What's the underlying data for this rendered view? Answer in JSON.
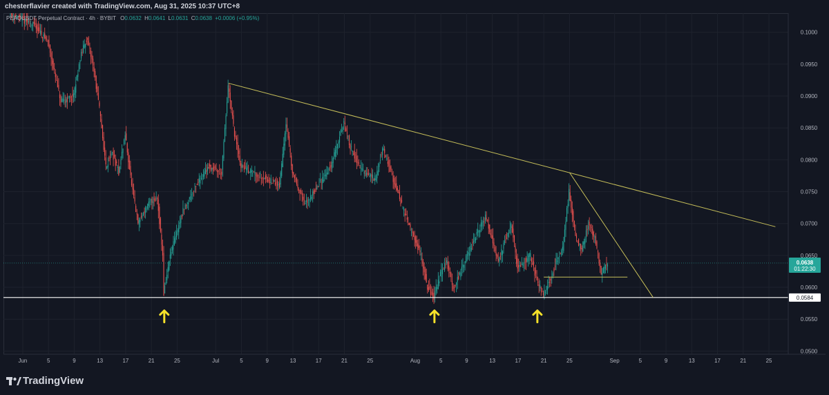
{
  "header": {
    "creator_text": "chesterflavier created with TradingView.com, Aug 31, 2025 10:37 UTC+8"
  },
  "legend": {
    "symbol": "PEAQUSDT Perpetual Contract · 4h · BYBIT",
    "open_label": "O",
    "open_value": "0.0632",
    "high_label": "H",
    "high_value": "0.0641",
    "low_label": "L",
    "low_value": "0.0631",
    "close_label": "C",
    "close_value": "0.0638",
    "change": "+0.0006 (+0.95%)"
  },
  "price_badge": {
    "price": "0.0638",
    "countdown": "01:22:30"
  },
  "support_badge": "0.0584",
  "footer": {
    "brand": "TradingView"
  },
  "colors": {
    "background": "#131722",
    "up": "#26a69a",
    "down": "#ef5350",
    "trendline": "#c8c05a",
    "support": "#ffffff",
    "arrow": "#f5e12a"
  },
  "chart_data": {
    "type": "candlestick",
    "symbol": "PEAQUSDT",
    "interval": "4h",
    "x_range": [
      "2025-05-29",
      "2025-09-28"
    ],
    "ylim": [
      0.0495,
      0.103
    ],
    "y_ticks": [
      "0.1000",
      "0.0950",
      "0.0900",
      "0.0850",
      "0.0800",
      "0.0750",
      "0.0700",
      "0.0650",
      "0.0600",
      "0.0550",
      "0.0500"
    ],
    "x_ticks": [
      {
        "date": "2025-06-01",
        "label": "Jun"
      },
      {
        "date": "2025-06-05",
        "label": "5"
      },
      {
        "date": "2025-06-09",
        "label": "9"
      },
      {
        "date": "2025-06-13",
        "label": "13"
      },
      {
        "date": "2025-06-17",
        "label": "17"
      },
      {
        "date": "2025-06-21",
        "label": "21"
      },
      {
        "date": "2025-06-25",
        "label": "25"
      },
      {
        "date": "2025-07-01",
        "label": "Jul"
      },
      {
        "date": "2025-07-05",
        "label": "5"
      },
      {
        "date": "2025-07-09",
        "label": "9"
      },
      {
        "date": "2025-07-13",
        "label": "13"
      },
      {
        "date": "2025-07-17",
        "label": "17"
      },
      {
        "date": "2025-07-21",
        "label": "21"
      },
      {
        "date": "2025-07-25",
        "label": "25"
      },
      {
        "date": "2025-08-01",
        "label": "Aug"
      },
      {
        "date": "2025-08-05",
        "label": "5"
      },
      {
        "date": "2025-08-09",
        "label": "9"
      },
      {
        "date": "2025-08-13",
        "label": "13"
      },
      {
        "date": "2025-08-17",
        "label": "17"
      },
      {
        "date": "2025-08-21",
        "label": "21"
      },
      {
        "date": "2025-08-25",
        "label": "25"
      },
      {
        "date": "2025-09-01",
        "label": "Sep"
      },
      {
        "date": "2025-09-05",
        "label": "5"
      },
      {
        "date": "2025-09-09",
        "label": "9"
      },
      {
        "date": "2025-09-13",
        "label": "13"
      },
      {
        "date": "2025-09-17",
        "label": "17"
      },
      {
        "date": "2025-09-21",
        "label": "21"
      },
      {
        "date": "2025-09-25",
        "label": "25"
      }
    ],
    "price_path": [
      {
        "date": "2025-05-30",
        "price": 0.103
      },
      {
        "date": "2025-06-01",
        "price": 0.102
      },
      {
        "date": "2025-06-03",
        "price": 0.101
      },
      {
        "date": "2025-06-05",
        "price": 0.0985
      },
      {
        "date": "2025-06-07",
        "price": 0.089
      },
      {
        "date": "2025-06-09",
        "price": 0.09
      },
      {
        "date": "2025-06-10",
        "price": 0.096
      },
      {
        "date": "2025-06-11",
        "price": 0.099
      },
      {
        "date": "2025-06-12",
        "price": 0.095
      },
      {
        "date": "2025-06-13",
        "price": 0.088
      },
      {
        "date": "2025-06-14",
        "price": 0.079
      },
      {
        "date": "2025-06-15",
        "price": 0.081
      },
      {
        "date": "2025-06-16",
        "price": 0.078
      },
      {
        "date": "2025-06-17",
        "price": 0.084
      },
      {
        "date": "2025-06-18",
        "price": 0.076
      },
      {
        "date": "2025-06-19",
        "price": 0.07
      },
      {
        "date": "2025-06-20",
        "price": 0.072
      },
      {
        "date": "2025-06-21",
        "price": 0.0735
      },
      {
        "date": "2025-06-22",
        "price": 0.074
      },
      {
        "date": "2025-06-22T20",
        "price": 0.065
      },
      {
        "date": "2025-06-23",
        "price": 0.059
      },
      {
        "date": "2025-06-24",
        "price": 0.065
      },
      {
        "date": "2025-06-26",
        "price": 0.072
      },
      {
        "date": "2025-06-28",
        "price": 0.076
      },
      {
        "date": "2025-06-30",
        "price": 0.079
      },
      {
        "date": "2025-07-02",
        "price": 0.078
      },
      {
        "date": "2025-07-03",
        "price": 0.0915
      },
      {
        "date": "2025-07-04",
        "price": 0.084
      },
      {
        "date": "2025-07-05",
        "price": 0.079
      },
      {
        "date": "2025-07-07",
        "price": 0.078
      },
      {
        "date": "2025-07-09",
        "price": 0.077
      },
      {
        "date": "2025-07-11",
        "price": 0.076
      },
      {
        "date": "2025-07-12",
        "price": 0.086
      },
      {
        "date": "2025-07-13",
        "price": 0.078
      },
      {
        "date": "2025-07-15",
        "price": 0.073
      },
      {
        "date": "2025-07-17",
        "price": 0.076
      },
      {
        "date": "2025-07-19",
        "price": 0.079
      },
      {
        "date": "2025-07-21",
        "price": 0.086
      },
      {
        "date": "2025-07-22",
        "price": 0.082
      },
      {
        "date": "2025-07-24",
        "price": 0.078
      },
      {
        "date": "2025-07-26",
        "price": 0.077
      },
      {
        "date": "2025-07-27",
        "price": 0.082
      },
      {
        "date": "2025-07-29",
        "price": 0.076
      },
      {
        "date": "2025-07-31",
        "price": 0.07
      },
      {
        "date": "2025-08-02",
        "price": 0.065
      },
      {
        "date": "2025-08-03",
        "price": 0.06
      },
      {
        "date": "2025-08-04",
        "price": 0.0585
      },
      {
        "date": "2025-08-05",
        "price": 0.062
      },
      {
        "date": "2025-08-06",
        "price": 0.064
      },
      {
        "date": "2025-08-07",
        "price": 0.06
      },
      {
        "date": "2025-08-08",
        "price": 0.062
      },
      {
        "date": "2025-08-10",
        "price": 0.067
      },
      {
        "date": "2025-08-12",
        "price": 0.071
      },
      {
        "date": "2025-08-13",
        "price": 0.068
      },
      {
        "date": "2025-08-14",
        "price": 0.064
      },
      {
        "date": "2025-08-16",
        "price": 0.07
      },
      {
        "date": "2025-08-17",
        "price": 0.063
      },
      {
        "date": "2025-08-19",
        "price": 0.065
      },
      {
        "date": "2025-08-20",
        "price": 0.061
      },
      {
        "date": "2025-08-21",
        "price": 0.059
      },
      {
        "date": "2025-08-22",
        "price": 0.061
      },
      {
        "date": "2025-08-23",
        "price": 0.064
      },
      {
        "date": "2025-08-24",
        "price": 0.066
      },
      {
        "date": "2025-08-25",
        "price": 0.075
      },
      {
        "date": "2025-08-26",
        "price": 0.068
      },
      {
        "date": "2025-08-27",
        "price": 0.066
      },
      {
        "date": "2025-08-28",
        "price": 0.07
      },
      {
        "date": "2025-08-29",
        "price": 0.068
      },
      {
        "date": "2025-08-30",
        "price": 0.062
      },
      {
        "date": "2025-08-31",
        "price": 0.0638
      }
    ],
    "current_price": 0.0638,
    "support_level": 0.0584,
    "descending_trendline": [
      {
        "date": "2025-07-03",
        "price": 0.092
      },
      {
        "date": "2025-07-21",
        "price": 0.087
      },
      {
        "date": "2025-08-25",
        "price": 0.078
      },
      {
        "date": "2025-09-26",
        "price": 0.0695
      }
    ],
    "wedge_line": [
      {
        "date": "2025-08-25",
        "price": 0.078
      },
      {
        "date": "2025-09-07",
        "price": 0.0584
      }
    ],
    "local_resistance": {
      "from": "2025-08-21",
      "to": "2025-09-03",
      "price": 0.0616
    },
    "arrows": [
      {
        "date": "2025-06-23",
        "price": 0.0556
      },
      {
        "date": "2025-08-04",
        "price": 0.0556
      },
      {
        "date": "2025-08-20",
        "price": 0.0556
      }
    ]
  }
}
